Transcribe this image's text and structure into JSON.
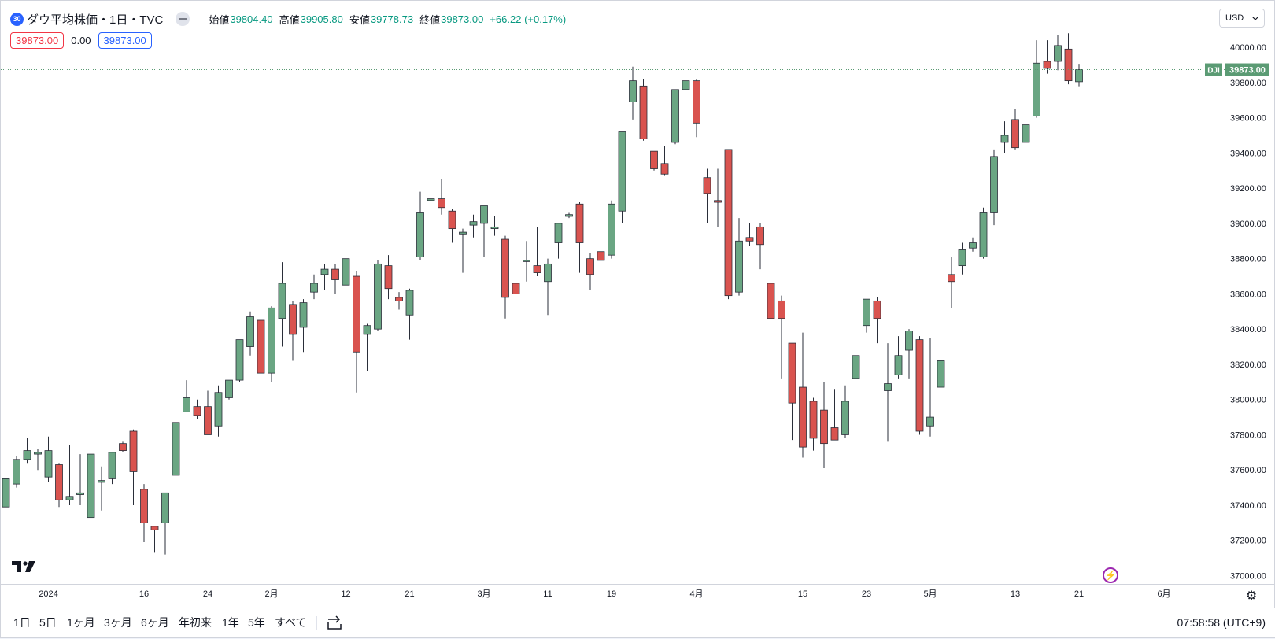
{
  "header": {
    "symbol_badge": "30",
    "symbol_name": "ダウ平均株価・1日・TVC",
    "ohlc": [
      {
        "label": "始値",
        "value": "39804.40"
      },
      {
        "label": "高値",
        "value": "39905.80"
      },
      {
        "label": "安値",
        "value": "39778.73"
      },
      {
        "label": "終値",
        "value": "39873.00"
      }
    ],
    "change": "+66.22 (+0.17%)",
    "sell_price": "39873.00",
    "spread": "0.00",
    "buy_price": "39873.00",
    "currency": "USD"
  },
  "bottom_bar": {
    "ranges": [
      "1日",
      "5日",
      "1ヶ月",
      "3ヶ月",
      "6ヶ月",
      "年初来",
      "1年",
      "5年",
      "すべて"
    ],
    "clock": "07:58:58 (UTC+9)"
  },
  "colors": {
    "up": "#6aa683",
    "down": "#d9534f",
    "last_price_tag": "#5b9b74"
  },
  "icons": [
    "tradingview-logo-icon",
    "chevron-down-icon",
    "lightning-icon",
    "settings-icon",
    "compare-icon",
    "eye-off-icon"
  ],
  "chart_data": {
    "type": "candlestick",
    "symbol": "DJI",
    "last_price": 39873.0,
    "last_price_label": "39873.00",
    "ylim": [
      36900,
      40250
    ],
    "y_ticks": [
      37000,
      37200,
      37400,
      37600,
      37800,
      38000,
      38200,
      38400,
      38600,
      38800,
      39000,
      39200,
      39400,
      39600,
      39800,
      40000
    ],
    "y_tick_labels": [
      "37000.00",
      "37200.00",
      "37400.00",
      "37600.00",
      "37800.00",
      "38000.00",
      "38200.00",
      "38400.00",
      "38600.00",
      "38800.00",
      "39000.00",
      "39200.00",
      "39400.00",
      "39600.00",
      "39800.00",
      "40000.00"
    ],
    "x_ticks": [
      {
        "label": "2024",
        "bar": 4
      },
      {
        "label": "16",
        "bar": 13
      },
      {
        "label": "24",
        "bar": 19
      },
      {
        "label": "2月",
        "bar": 25
      },
      {
        "label": "12",
        "bar": 32
      },
      {
        "label": "21",
        "bar": 38
      },
      {
        "label": "3月",
        "bar": 45
      },
      {
        "label": "11",
        "bar": 51
      },
      {
        "label": "19",
        "bar": 57
      },
      {
        "label": "4月",
        "bar": 65
      },
      {
        "label": "15",
        "bar": 75
      },
      {
        "label": "23",
        "bar": 81
      },
      {
        "label": "5月",
        "bar": 87
      },
      {
        "label": "13",
        "bar": 95
      },
      {
        "label": "21",
        "bar": 101
      },
      {
        "label": "6月",
        "bar": 109
      }
    ],
    "candles": [
      {
        "o": 37390,
        "h": 37620,
        "l": 37350,
        "c": 37550
      },
      {
        "o": 37520,
        "h": 37680,
        "l": 37500,
        "c": 37660
      },
      {
        "o": 37660,
        "h": 37780,
        "l": 37640,
        "c": 37710
      },
      {
        "o": 37690,
        "h": 37720,
        "l": 37600,
        "c": 37700
      },
      {
        "o": 37560,
        "h": 37790,
        "l": 37530,
        "c": 37710
      },
      {
        "o": 37630,
        "h": 37640,
        "l": 37390,
        "c": 37430
      },
      {
        "o": 37430,
        "h": 37740,
        "l": 37400,
        "c": 37450
      },
      {
        "o": 37460,
        "h": 37690,
        "l": 37400,
        "c": 37470
      },
      {
        "o": 37330,
        "h": 37690,
        "l": 37250,
        "c": 37690
      },
      {
        "o": 37530,
        "h": 37620,
        "l": 37370,
        "c": 37540
      },
      {
        "o": 37550,
        "h": 37700,
        "l": 37520,
        "c": 37700
      },
      {
        "o": 37750,
        "h": 37760,
        "l": 37700,
        "c": 37710
      },
      {
        "o": 37820,
        "h": 37830,
        "l": 37400,
        "c": 37590
      },
      {
        "o": 37490,
        "h": 37520,
        "l": 37190,
        "c": 37300
      },
      {
        "o": 37280,
        "h": 37280,
        "l": 37130,
        "c": 37260
      },
      {
        "o": 37300,
        "h": 37470,
        "l": 37120,
        "c": 37470
      },
      {
        "o": 37570,
        "h": 37940,
        "l": 37460,
        "c": 37870
      },
      {
        "o": 37930,
        "h": 38110,
        "l": 37930,
        "c": 38010
      },
      {
        "o": 37960,
        "h": 38000,
        "l": 37890,
        "c": 37910
      },
      {
        "o": 37960,
        "h": 38050,
        "l": 37800,
        "c": 37800
      },
      {
        "o": 37850,
        "h": 38080,
        "l": 37790,
        "c": 38040
      },
      {
        "o": 38010,
        "h": 38110,
        "l": 38000,
        "c": 38110
      },
      {
        "o": 38110,
        "h": 38340,
        "l": 38100,
        "c": 38340
      },
      {
        "o": 38300,
        "h": 38500,
        "l": 38250,
        "c": 38470
      },
      {
        "o": 38450,
        "h": 38450,
        "l": 38140,
        "c": 38150
      },
      {
        "o": 38150,
        "h": 38530,
        "l": 38100,
        "c": 38520
      },
      {
        "o": 38460,
        "h": 38780,
        "l": 38300,
        "c": 38660
      },
      {
        "o": 38540,
        "h": 38560,
        "l": 38220,
        "c": 38370
      },
      {
        "o": 38410,
        "h": 38570,
        "l": 38270,
        "c": 38550
      },
      {
        "o": 38610,
        "h": 38710,
        "l": 38570,
        "c": 38660
      },
      {
        "o": 38710,
        "h": 38770,
        "l": 38620,
        "c": 38740
      },
      {
        "o": 38740,
        "h": 38770,
        "l": 38600,
        "c": 38680
      },
      {
        "o": 38650,
        "h": 38930,
        "l": 38610,
        "c": 38800
      },
      {
        "o": 38700,
        "h": 38730,
        "l": 38040,
        "c": 38270
      },
      {
        "o": 38370,
        "h": 38430,
        "l": 38160,
        "c": 38420
      },
      {
        "o": 38400,
        "h": 38790,
        "l": 38390,
        "c": 38770
      },
      {
        "o": 38760,
        "h": 38820,
        "l": 38570,
        "c": 38630
      },
      {
        "o": 38580,
        "h": 38610,
        "l": 38510,
        "c": 38560
      },
      {
        "o": 38480,
        "h": 38630,
        "l": 38340,
        "c": 38620
      },
      {
        "o": 38810,
        "h": 39180,
        "l": 38790,
        "c": 39060
      },
      {
        "o": 39130,
        "h": 39280,
        "l": 39130,
        "c": 39140
      },
      {
        "o": 39140,
        "h": 39250,
        "l": 39050,
        "c": 39090
      },
      {
        "o": 39070,
        "h": 39080,
        "l": 38890,
        "c": 38970
      },
      {
        "o": 38940,
        "h": 38970,
        "l": 38720,
        "c": 38950
      },
      {
        "o": 38990,
        "h": 39050,
        "l": 38920,
        "c": 39010
      },
      {
        "o": 39000,
        "h": 39100,
        "l": 38810,
        "c": 39100
      },
      {
        "o": 38970,
        "h": 39040,
        "l": 38930,
        "c": 38980
      },
      {
        "o": 38910,
        "h": 38930,
        "l": 38460,
        "c": 38580
      },
      {
        "o": 38660,
        "h": 38730,
        "l": 38580,
        "c": 38600
      },
      {
        "o": 38790,
        "h": 38900,
        "l": 38670,
        "c": 38790
      },
      {
        "o": 38760,
        "h": 38980,
        "l": 38700,
        "c": 38720
      },
      {
        "o": 38670,
        "h": 38800,
        "l": 38480,
        "c": 38770
      },
      {
        "o": 38890,
        "h": 39000,
        "l": 38800,
        "c": 39000
      },
      {
        "o": 39040,
        "h": 39060,
        "l": 39030,
        "c": 39050
      },
      {
        "o": 39110,
        "h": 39120,
        "l": 38720,
        "c": 38890
      },
      {
        "o": 38800,
        "h": 38830,
        "l": 38620,
        "c": 38710
      },
      {
        "o": 38840,
        "h": 38940,
        "l": 38780,
        "c": 38790
      },
      {
        "o": 38820,
        "h": 39130,
        "l": 38800,
        "c": 39110
      },
      {
        "o": 39070,
        "h": 39520,
        "l": 39000,
        "c": 39520
      },
      {
        "o": 39690,
        "h": 39890,
        "l": 39590,
        "c": 39810
      },
      {
        "o": 39780,
        "h": 39820,
        "l": 39470,
        "c": 39480
      },
      {
        "o": 39410,
        "h": 39410,
        "l": 39300,
        "c": 39310
      },
      {
        "o": 39340,
        "h": 39440,
        "l": 39270,
        "c": 39280
      },
      {
        "o": 39460,
        "h": 39760,
        "l": 39450,
        "c": 39760
      },
      {
        "o": 39760,
        "h": 39880,
        "l": 39740,
        "c": 39810
      },
      {
        "o": 39810,
        "h": 39820,
        "l": 39490,
        "c": 39570
      },
      {
        "o": 39260,
        "h": 39310,
        "l": 39000,
        "c": 39170
      },
      {
        "o": 39130,
        "h": 39310,
        "l": 38980,
        "c": 39120
      },
      {
        "o": 39420,
        "h": 39420,
        "l": 38570,
        "c": 38590
      },
      {
        "o": 38610,
        "h": 39030,
        "l": 38590,
        "c": 38900
      },
      {
        "o": 38920,
        "h": 39000,
        "l": 38870,
        "c": 38900
      },
      {
        "o": 38980,
        "h": 39000,
        "l": 38740,
        "c": 38880
      },
      {
        "o": 38660,
        "h": 38660,
        "l": 38300,
        "c": 38460
      },
      {
        "o": 38560,
        "h": 38590,
        "l": 38120,
        "c": 38460
      },
      {
        "o": 38320,
        "h": 38320,
        "l": 37770,
        "c": 37980
      },
      {
        "o": 38070,
        "h": 38380,
        "l": 37670,
        "c": 37730
      },
      {
        "o": 37990,
        "h": 38010,
        "l": 37710,
        "c": 37780
      },
      {
        "o": 37940,
        "h": 38100,
        "l": 37610,
        "c": 37750
      },
      {
        "o": 37840,
        "h": 38060,
        "l": 37780,
        "c": 37770
      },
      {
        "o": 37800,
        "h": 38080,
        "l": 37780,
        "c": 37990
      },
      {
        "o": 38120,
        "h": 38450,
        "l": 38090,
        "c": 38250
      },
      {
        "o": 38420,
        "h": 38560,
        "l": 38380,
        "c": 38570
      },
      {
        "o": 38560,
        "h": 38580,
        "l": 38320,
        "c": 38460
      },
      {
        "o": 38050,
        "h": 38320,
        "l": 37760,
        "c": 38090
      },
      {
        "o": 38140,
        "h": 38360,
        "l": 38120,
        "c": 38250
      },
      {
        "o": 38280,
        "h": 38400,
        "l": 38120,
        "c": 38390
      },
      {
        "o": 38340,
        "h": 38360,
        "l": 37800,
        "c": 37820
      },
      {
        "o": 37850,
        "h": 38350,
        "l": 37790,
        "c": 37900
      },
      {
        "o": 38070,
        "h": 38290,
        "l": 37900,
        "c": 38220
      },
      {
        "o": 38710,
        "h": 38810,
        "l": 38520,
        "c": 38670
      },
      {
        "o": 38760,
        "h": 38890,
        "l": 38710,
        "c": 38850
      },
      {
        "o": 38860,
        "h": 38920,
        "l": 38840,
        "c": 38890
      },
      {
        "o": 38810,
        "h": 39090,
        "l": 38800,
        "c": 39060
      },
      {
        "o": 39060,
        "h": 39420,
        "l": 38990,
        "c": 39380
      },
      {
        "o": 39460,
        "h": 39580,
        "l": 39400,
        "c": 39500
      },
      {
        "o": 39590,
        "h": 39650,
        "l": 39420,
        "c": 39430
      },
      {
        "o": 39460,
        "h": 39620,
        "l": 39370,
        "c": 39560
      },
      {
        "o": 39610,
        "h": 40040,
        "l": 39600,
        "c": 39910
      },
      {
        "o": 39920,
        "h": 40040,
        "l": 39850,
        "c": 39880
      },
      {
        "o": 39920,
        "h": 40070,
        "l": 39870,
        "c": 40010
      },
      {
        "o": 39990,
        "h": 40080,
        "l": 39790,
        "c": 39810
      },
      {
        "o": 39804.4,
        "h": 39905.8,
        "l": 39778.73,
        "c": 39873
      }
    ]
  }
}
